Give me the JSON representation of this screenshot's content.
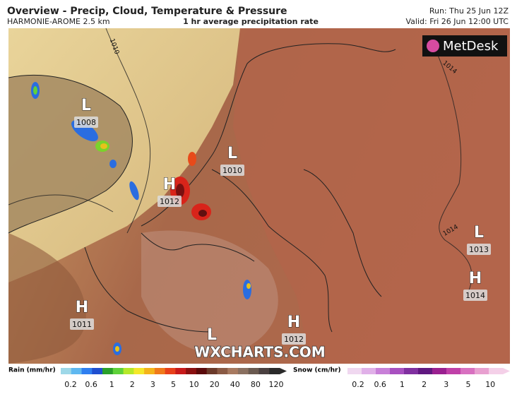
{
  "header": {
    "title": "Overview - Precip, Cloud, Temperature & Pressure",
    "model": "HARMONIE-AROME 2.5 km",
    "subtitle": "1 hr average precipitation rate",
    "run": "Run: Thu 25 Jun 12Z",
    "valid": "Valid: Fri 26 Jun 12:00 UTC",
    "logo": "MetDesk"
  },
  "map": {
    "pressure_centers": [
      {
        "symbol": "L",
        "value": "1008"
      },
      {
        "symbol": "L",
        "value": "1010"
      },
      {
        "symbol": "H",
        "value": "1012"
      },
      {
        "symbol": "L",
        "value": "1013"
      },
      {
        "symbol": "H",
        "value": "1014"
      },
      {
        "symbol": "H",
        "value": "1011"
      },
      {
        "symbol": "H",
        "value": "1012"
      },
      {
        "symbol": "L"
      }
    ],
    "isobar_labels": [
      "1010",
      "1014",
      "1014"
    ],
    "watermark": "WXCHARTS.COM"
  },
  "legend": {
    "rain": {
      "label": "Rain (mm/hr)",
      "ticks": [
        "0.2",
        "0.6",
        "1",
        "2",
        "3",
        "5",
        "10",
        "20",
        "40",
        "80",
        "120"
      ]
    },
    "snow": {
      "label": "Snow (cm/hr)",
      "ticks": [
        "0.2",
        "0.6",
        "1",
        "2",
        "3",
        "5",
        "10"
      ]
    }
  }
}
